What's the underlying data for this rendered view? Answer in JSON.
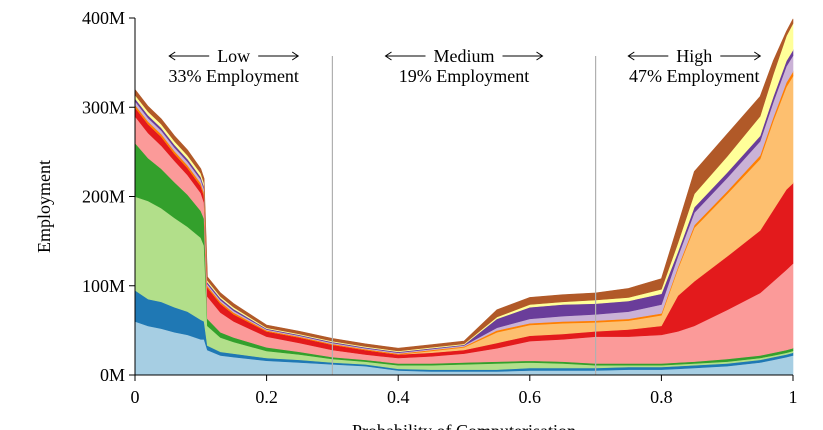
{
  "chart_data": {
    "type": "area",
    "stacked": true,
    "xlabel": "Probability of Computerisation",
    "ylabel": "Employment",
    "xlim": [
      0,
      1
    ],
    "ylim": [
      0,
      400
    ],
    "x_ticks": [
      {
        "value": 0,
        "label": "0"
      },
      {
        "value": 0.2,
        "label": "0.2"
      },
      {
        "value": 0.4,
        "label": "0.4"
      },
      {
        "value": 0.6,
        "label": "0.6"
      },
      {
        "value": 0.8,
        "label": "0.8"
      },
      {
        "value": 1,
        "label": "1"
      }
    ],
    "y_ticks": [
      {
        "value": 0,
        "label": "0M"
      },
      {
        "value": 100,
        "label": "100M"
      },
      {
        "value": 200,
        "label": "200M"
      },
      {
        "value": 300,
        "label": "300M"
      },
      {
        "value": 400,
        "label": "400M"
      }
    ],
    "grid": false,
    "region_boundaries": [
      0.3,
      0.7
    ],
    "regions": [
      {
        "name": "Low",
        "share": "33% Employment",
        "x_center": 0.15
      },
      {
        "name": "Medium",
        "share": "19% Employment",
        "x_center": 0.5
      },
      {
        "name": "High",
        "share": "47% Employment",
        "x_center": 0.85
      }
    ],
    "x": [
      0,
      0.02,
      0.04,
      0.06,
      0.08,
      0.1,
      0.105,
      0.11,
      0.13,
      0.15,
      0.2,
      0.25,
      0.3,
      0.35,
      0.4,
      0.45,
      0.5,
      0.55,
      0.6,
      0.65,
      0.7,
      0.75,
      0.8,
      0.825,
      0.85,
      0.9,
      0.95,
      0.97,
      0.99,
      1
    ],
    "series": [
      {
        "color": "#a6cee3",
        "values": [
          60,
          55,
          52,
          48,
          45,
          40,
          40,
          28,
          22,
          20,
          16,
          14,
          12,
          10,
          5,
          4,
          4,
          4,
          5,
          5,
          5,
          6,
          6,
          7,
          8,
          10,
          14,
          17,
          20,
          22
        ]
      },
      {
        "color": "#1f78b4",
        "values": [
          35,
          30,
          30,
          28,
          26,
          22,
          20,
          5,
          4,
          4,
          3,
          3,
          2,
          2,
          2,
          2,
          2,
          2,
          3,
          3,
          3,
          3,
          3,
          3,
          3,
          3,
          3,
          3,
          3,
          3
        ]
      },
      {
        "color": "#b2df8a",
        "values": [
          105,
          110,
          105,
          100,
          95,
          92,
          85,
          22,
          16,
          13,
          8,
          6,
          4,
          3,
          4,
          5,
          6,
          7,
          6,
          5,
          3,
          2,
          2,
          2,
          2,
          2,
          2,
          2,
          2,
          2
        ]
      },
      {
        "color": "#33a02c",
        "values": [
          60,
          48,
          44,
          40,
          36,
          30,
          30,
          8,
          6,
          5,
          4,
          3,
          2,
          2,
          2,
          2,
          2,
          2,
          2,
          2,
          2,
          2,
          2,
          2,
          2,
          3,
          3,
          3,
          3,
          3
        ]
      },
      {
        "color": "#fb9a99",
        "values": [
          30,
          28,
          26,
          24,
          22,
          20,
          18,
          25,
          22,
          18,
          12,
          10,
          8,
          6,
          6,
          8,
          10,
          15,
          22,
          25,
          30,
          30,
          32,
          35,
          40,
          55,
          70,
          80,
          90,
          95
        ]
      },
      {
        "color": "#e31a1c",
        "values": [
          10,
          10,
          10,
          8,
          8,
          8,
          8,
          10,
          10,
          8,
          6,
          6,
          6,
          5,
          4,
          4,
          4,
          6,
          6,
          6,
          6,
          8,
          10,
          40,
          50,
          60,
          70,
          80,
          90,
          90
        ]
      },
      {
        "color": "#fdbf6f",
        "values": [
          0,
          0,
          0,
          0,
          0,
          0,
          0,
          0,
          0,
          0,
          0,
          0,
          0,
          0,
          0,
          2,
          3,
          12,
          12,
          12,
          10,
          10,
          12,
          30,
          60,
          70,
          80,
          100,
          115,
          120
        ]
      },
      {
        "color": "#ff7f00",
        "values": [
          3,
          3,
          3,
          3,
          3,
          3,
          3,
          2,
          2,
          2,
          1,
          1,
          1,
          1,
          1,
          1,
          1,
          2,
          2,
          2,
          2,
          2,
          2,
          2,
          3,
          3,
          4,
          4,
          5,
          5
        ]
      },
      {
        "color": "#cab2d6",
        "values": [
          4,
          4,
          4,
          4,
          4,
          4,
          4,
          2,
          2,
          2,
          1,
          1,
          1,
          1,
          1,
          1,
          1,
          3,
          5,
          6,
          7,
          8,
          10,
          12,
          14,
          15,
          16,
          17,
          18,
          18
        ]
      },
      {
        "color": "#6a3d9a",
        "values": [
          3,
          3,
          3,
          3,
          3,
          3,
          3,
          2,
          2,
          2,
          1,
          1,
          1,
          1,
          1,
          1,
          1,
          10,
          13,
          13,
          12,
          12,
          12,
          5,
          6,
          6,
          6,
          6,
          6,
          6
        ]
      },
      {
        "color": "#ffff99",
        "values": [
          4,
          4,
          4,
          4,
          4,
          4,
          4,
          2,
          2,
          2,
          1,
          1,
          1,
          1,
          1,
          1,
          1,
          2,
          3,
          3,
          4,
          4,
          5,
          10,
          15,
          18,
          22,
          25,
          28,
          30
        ]
      },
      {
        "color": "#b15928",
        "values": [
          6,
          6,
          6,
          6,
          6,
          5,
          5,
          4,
          4,
          4,
          3,
          3,
          3,
          3,
          3,
          3,
          3,
          8,
          8,
          8,
          8,
          10,
          12,
          20,
          25,
          25,
          22,
          15,
          5,
          5
        ]
      }
    ]
  }
}
